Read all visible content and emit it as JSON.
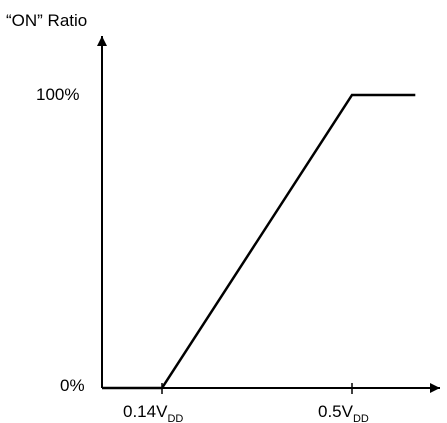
{
  "chart_data": {
    "type": "line",
    "title": "",
    "xlabel": "",
    "ylabel": "“ON” Ratio",
    "x_unit_label": "V",
    "x_unit_subscript": "DD",
    "x_ticks": [
      {
        "value": 0.14,
        "label": "0.14",
        "unit": "V",
        "subscript": "DD"
      },
      {
        "value": 0.5,
        "label": "0.5",
        "unit": "V",
        "subscript": "DD"
      }
    ],
    "y_ticks": [
      {
        "value": 0,
        "label": "0%"
      },
      {
        "value": 100,
        "label": "100%"
      }
    ],
    "series": [
      {
        "x": [
          0,
          0.14,
          0.5,
          0.62
        ],
        "y": [
          0,
          0,
          100,
          100
        ]
      }
    ],
    "xlim": [
      0,
      0.62
    ],
    "ylim": [
      0,
      100
    ],
    "grid": false,
    "line_color": "#000000"
  }
}
